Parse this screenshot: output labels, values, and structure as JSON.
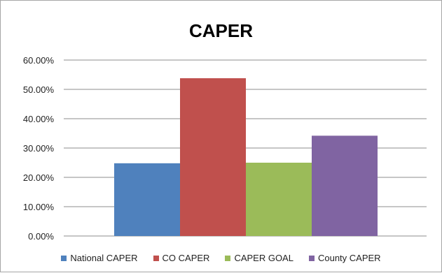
{
  "chart_data": {
    "type": "bar",
    "title": "CAPER",
    "xlabel": "",
    "ylabel": "",
    "ylim": [
      0,
      0.6
    ],
    "yticks": [
      "0.00%",
      "10.00%",
      "20.00%",
      "30.00%",
      "40.00%",
      "50.00%",
      "60.00%"
    ],
    "grid": true,
    "legend": "bottom",
    "series": [
      {
        "name": "National CAPER",
        "value": 0.248,
        "color": "#4f81bd"
      },
      {
        "name": "CO CAPER",
        "value": 0.538,
        "color": "#c0504d"
      },
      {
        "name": "CAPER GOAL",
        "value": 0.25,
        "color": "#9bbb59"
      },
      {
        "name": "County CAPER",
        "value": 0.342,
        "color": "#8064a2"
      }
    ]
  }
}
